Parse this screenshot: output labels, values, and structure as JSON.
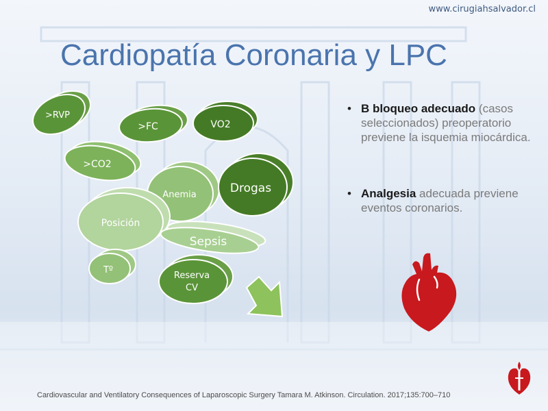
{
  "header": {
    "url": "www.cirugiahsalvador.cl"
  },
  "slide": {
    "title": "Cardiopatía Coronaria y LPC",
    "bullets": [
      {
        "bold": "B bloqueo adecuado",
        "rest": " (casos seleccionados) preoperatorio previene la isquemia miocárdica."
      },
      {
        "bold": "Analgesia",
        "rest": " adecuada previene eventos coronarios."
      }
    ]
  },
  "diagram": {
    "nodes": [
      "&gt;RVP",
      ">FC",
      "VO2",
      ">CO2",
      "Anemia",
      "Drogas",
      "Posición",
      "Sepsis",
      "Tº",
      "Reserva",
      "CV"
    ],
    "colors": {
      "dark": "#4e8a2c",
      "medium": "#7db25a",
      "light": "#a8cf92",
      "pale": "#c8e1bb"
    }
  },
  "footer": {
    "citation": "Cardiovascular and Ventilatory Consequences of Laparoscopic Surgery Tamara M. Atkinson. Circulation. 2017;135:700–710"
  },
  "icons": {
    "heart": "heart-icon",
    "logo": "heart-torch-logo-icon"
  }
}
